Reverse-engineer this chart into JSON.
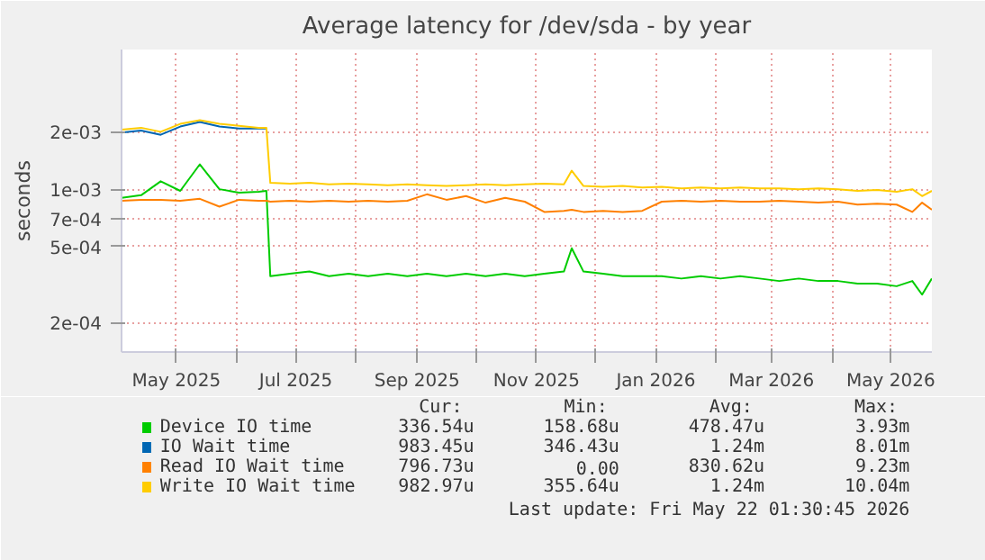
{
  "chart_data": {
    "type": "line",
    "title": "Average latency for /dev/sda - by year",
    "ylabel": "seconds",
    "log": true,
    "grid": true,
    "legend": "bottom",
    "xlim": [
      "2025-04-03",
      "2026-05-22"
    ],
    "xticks": [
      {
        "value": "2025-05-01",
        "label": "May 2025"
      },
      {
        "value": "2025-06-01",
        "label": null
      },
      {
        "value": "2025-07-01",
        "label": "Jul 2025"
      },
      {
        "value": "2025-08-01",
        "label": null
      },
      {
        "value": "2025-09-01",
        "label": "Sep 2025"
      },
      {
        "value": "2025-10-01",
        "label": null
      },
      {
        "value": "2025-11-01",
        "label": "Nov 2025"
      },
      {
        "value": "2025-12-01",
        "label": null
      },
      {
        "value": "2026-01-01",
        "label": "Jan 2026"
      },
      {
        "value": "2026-02-01",
        "label": null
      },
      {
        "value": "2026-03-01",
        "label": "Mar 2026"
      },
      {
        "value": "2026-04-01",
        "label": null
      },
      {
        "value": "2026-05-01",
        "label": "May 2026"
      }
    ],
    "ylim": [
      0.00014,
      0.0054
    ],
    "yticks": [
      {
        "value": 0.0002,
        "label": "2e-04"
      },
      {
        "value": 0.0005,
        "label": "5e-04"
      },
      {
        "value": 0.0007,
        "label": "7e-04"
      },
      {
        "value": 0.001,
        "label": "1e-03"
      },
      {
        "value": 0.002,
        "label": "2e-03"
      }
    ],
    "x": [
      "2025-04-03",
      "2025-04-13",
      "2025-04-23",
      "2025-05-03",
      "2025-05-13",
      "2025-05-23",
      "2025-06-02",
      "2025-06-12",
      "2025-06-16",
      "2025-06-18",
      "2025-06-28",
      "2025-07-08",
      "2025-07-18",
      "2025-07-28",
      "2025-08-07",
      "2025-08-17",
      "2025-08-27",
      "2025-09-06",
      "2025-09-16",
      "2025-09-26",
      "2025-10-06",
      "2025-10-16",
      "2025-10-26",
      "2025-11-05",
      "2025-11-15",
      "2025-11-19",
      "2025-11-25",
      "2025-12-05",
      "2025-12-15",
      "2025-12-25",
      "2026-01-04",
      "2026-01-14",
      "2026-01-24",
      "2026-02-03",
      "2026-02-13",
      "2026-02-23",
      "2026-03-05",
      "2026-03-15",
      "2026-03-25",
      "2026-04-04",
      "2026-04-14",
      "2026-04-24",
      "2026-05-04",
      "2026-05-12",
      "2026-05-17",
      "2026-05-22"
    ],
    "series": [
      {
        "name": "Device IO time",
        "color": "#00cc00",
        "values": [
          0.0009,
          0.00093,
          0.0011,
          0.00098,
          0.00135,
          0.001,
          0.00096,
          0.00097,
          0.00098,
          0.00035,
          0.00036,
          0.00037,
          0.00035,
          0.00036,
          0.00035,
          0.00036,
          0.00035,
          0.00036,
          0.00035,
          0.00036,
          0.00035,
          0.00036,
          0.00035,
          0.00036,
          0.00037,
          0.00049,
          0.00037,
          0.00036,
          0.00035,
          0.00035,
          0.00035,
          0.00034,
          0.00035,
          0.00034,
          0.00035,
          0.00034,
          0.00033,
          0.00034,
          0.00033,
          0.00033,
          0.00032,
          0.00032,
          0.00031,
          0.00033,
          0.00028,
          0.00034
        ]
      },
      {
        "name": "IO Wait time",
        "color": "#0066b3",
        "values": [
          0.00198,
          0.00203,
          0.00193,
          0.00213,
          0.00225,
          0.00213,
          0.00208,
          0.00208,
          0.00208,
          null,
          null,
          null,
          null,
          null,
          null,
          null,
          null,
          null,
          null,
          null,
          null,
          null,
          null,
          null,
          null,
          null,
          null,
          null,
          null,
          null,
          null,
          null,
          null,
          null,
          null,
          null,
          null,
          null,
          null,
          null,
          null,
          null,
          null,
          null,
          null,
          null
        ]
      },
      {
        "name": "Read IO Wait time",
        "color": "#ff8000",
        "values": [
          0.00087,
          0.00088,
          0.00088,
          0.00087,
          0.00089,
          0.00081,
          0.00088,
          0.00087,
          0.00087,
          0.00086,
          0.00087,
          0.00086,
          0.00087,
          0.00086,
          0.00087,
          0.00086,
          0.00087,
          0.00094,
          0.00088,
          0.00092,
          0.00085,
          0.0009,
          0.00086,
          0.00076,
          0.00077,
          0.00078,
          0.00076,
          0.00077,
          0.00076,
          0.00077,
          0.00086,
          0.00087,
          0.00086,
          0.00087,
          0.00086,
          0.00086,
          0.00087,
          0.00086,
          0.00085,
          0.00086,
          0.00083,
          0.00084,
          0.00083,
          0.00076,
          0.00085,
          0.00078
        ]
      },
      {
        "name": "Write IO Wait time",
        "color": "#ffcc00",
        "values": [
          0.00205,
          0.0021,
          0.002,
          0.0022,
          0.0023,
          0.0022,
          0.00215,
          0.0021,
          0.0021,
          0.00108,
          0.00107,
          0.00108,
          0.00106,
          0.00107,
          0.00106,
          0.00105,
          0.00106,
          0.00105,
          0.00104,
          0.00105,
          0.00106,
          0.00105,
          0.00106,
          0.00107,
          0.00106,
          0.00125,
          0.00104,
          0.00103,
          0.00104,
          0.00102,
          0.00103,
          0.00101,
          0.00102,
          0.00101,
          0.00102,
          0.00101,
          0.00101,
          0.001,
          0.00101,
          0.001,
          0.00098,
          0.00099,
          0.00097,
          0.001,
          0.00092,
          0.00098
        ]
      }
    ],
    "annotations": [
      "Cur:",
      "Min:",
      "Avg:",
      "Max:",
      "336.54u",
      "158.68u",
      "478.47u",
      "3.93m",
      "983.45u",
      "346.43u",
      "1.24m",
      "8.01m",
      "796.73u",
      "0.00",
      "830.62u",
      "9.23m",
      "982.97u",
      "355.64u",
      "1.24m",
      "10.04m",
      "Last update: Fri May 22 01:30:45 2026"
    ]
  }
}
